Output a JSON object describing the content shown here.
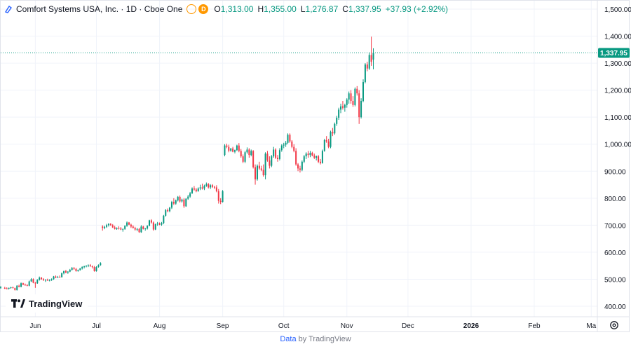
{
  "legend": {
    "symbol": "Comfort Systems USA, Inc. · 1D · Cboe One",
    "badge_left": "",
    "badge_right": "D",
    "open_label": "O",
    "open_value": "1,313.00",
    "high_label": "H",
    "high_value": "1,355.00",
    "low_label": "L",
    "low_value": "1,276.87",
    "close_label": "C",
    "close_value": "1,337.95",
    "change": "+37.93 (+2.92%)"
  },
  "branding": {
    "logo_text": "TradingView"
  },
  "footer": {
    "data_label": "Data",
    "by_text": " by TradingView"
  },
  "colors": {
    "up": "#089981",
    "down": "#f23645",
    "last_price_bg": "#089981",
    "grid": "#f0f3fa"
  },
  "chart_data": {
    "type": "candlestick",
    "y_axis_labels": [
      "1,500.00",
      "1,400.00",
      "1,300.00",
      "1,200.00",
      "1,100.00",
      "1,000.00",
      "900.00",
      "800.00",
      "700.00",
      "600.00",
      "500.00",
      "400.00"
    ],
    "ylim": [
      374,
      1500
    ],
    "x_axis_labels": [
      {
        "label": "Jun",
        "day": 7
      },
      {
        "label": "Jul",
        "day": 37
      },
      {
        "label": "Aug",
        "day": 68
      },
      {
        "label": "Sep",
        "day": 99
      },
      {
        "label": "Oct",
        "day": 129
      },
      {
        "label": "Nov",
        "day": 160
      },
      {
        "label": "Dec",
        "day": 190
      },
      {
        "label": "2026",
        "day": 221
      },
      {
        "label": "Feb",
        "day": 252
      },
      {
        "label": "Ma",
        "day": 280
      }
    ],
    "x_range": [
      -10,
      283
    ],
    "last_price": {
      "value": 1337.95,
      "label": "1,337.95"
    },
    "candles": [
      [
        -10,
        470,
        475,
        465,
        470
      ],
      [
        -8,
        468,
        472,
        464,
        466
      ],
      [
        -7,
        466,
        470,
        463,
        465
      ],
      [
        -6,
        465,
        469,
        462,
        468
      ],
      [
        -5,
        468,
        472,
        465,
        470
      ],
      [
        -4,
        470,
        473,
        466,
        467
      ],
      [
        -3,
        467,
        469,
        458,
        460
      ],
      [
        -2,
        460,
        478,
        458,
        476
      ],
      [
        -1,
        476,
        480,
        470,
        472
      ],
      [
        0,
        472,
        488,
        470,
        485
      ],
      [
        1,
        485,
        487,
        478,
        480
      ],
      [
        2,
        480,
        484,
        476,
        478
      ],
      [
        3,
        478,
        482,
        474,
        476
      ],
      [
        4,
        476,
        495,
        474,
        492
      ],
      [
        5,
        492,
        504,
        490,
        500
      ],
      [
        6,
        500,
        503,
        485,
        487
      ],
      [
        7,
        487,
        490,
        468,
        485
      ],
      [
        8,
        485,
        500,
        483,
        498
      ],
      [
        9,
        498,
        510,
        495,
        506
      ],
      [
        10,
        506,
        508,
        498,
        500
      ],
      [
        11,
        500,
        504,
        494,
        496
      ],
      [
        12,
        496,
        500,
        490,
        498
      ],
      [
        13,
        498,
        502,
        494,
        495
      ],
      [
        14,
        495,
        500,
        492,
        497
      ],
      [
        15,
        497,
        503,
        494,
        500
      ],
      [
        16,
        500,
        512,
        498,
        510
      ],
      [
        17,
        510,
        514,
        504,
        506
      ],
      [
        18,
        506,
        512,
        505,
        509
      ],
      [
        19,
        509,
        514,
        506,
        508
      ],
      [
        20,
        508,
        525,
        506,
        522
      ],
      [
        21,
        522,
        532,
        518,
        530
      ],
      [
        22,
        530,
        535,
        522,
        525
      ],
      [
        23,
        525,
        530,
        520,
        528
      ],
      [
        24,
        528,
        538,
        526,
        535
      ],
      [
        25,
        535,
        545,
        532,
        542
      ],
      [
        26,
        542,
        545,
        535,
        538
      ],
      [
        27,
        538,
        542,
        528,
        530
      ],
      [
        28,
        530,
        536,
        528,
        534
      ],
      [
        29,
        534,
        542,
        532,
        540
      ],
      [
        30,
        540,
        548,
        536,
        545
      ],
      [
        31,
        545,
        550,
        540,
        548
      ],
      [
        32,
        548,
        552,
        544,
        550
      ],
      [
        33,
        550,
        555,
        545,
        552
      ],
      [
        34,
        552,
        556,
        546,
        548
      ],
      [
        35,
        548,
        551,
        540,
        545
      ],
      [
        36,
        545,
        549,
        528,
        530
      ],
      [
        37,
        530,
        548,
        528,
        545
      ],
      [
        38,
        545,
        555,
        543,
        552
      ],
      [
        39,
        552,
        563,
        550,
        560
      ],
      [
        40,
        695,
        700,
        680,
        690
      ],
      [
        41,
        690,
        698,
        685,
        694
      ],
      [
        42,
        694,
        705,
        690,
        700
      ],
      [
        43,
        700,
        708,
        695,
        704
      ],
      [
        44,
        704,
        708,
        698,
        700
      ],
      [
        45,
        700,
        704,
        690,
        692
      ],
      [
        46,
        692,
        698,
        684,
        686
      ],
      [
        47,
        686,
        692,
        683,
        690
      ],
      [
        48,
        690,
        696,
        684,
        688
      ],
      [
        49,
        688,
        693,
        682,
        684
      ],
      [
        50,
        684,
        688,
        676,
        686
      ],
      [
        51,
        686,
        700,
        683,
        698
      ],
      [
        52,
        698,
        714,
        694,
        710
      ],
      [
        53,
        710,
        712,
        700,
        702
      ],
      [
        54,
        702,
        706,
        690,
        695
      ],
      [
        55,
        695,
        700,
        688,
        690
      ],
      [
        56,
        690,
        694,
        680,
        684
      ],
      [
        57,
        684,
        690,
        678,
        686
      ],
      [
        58,
        686,
        690,
        672,
        674
      ],
      [
        59,
        674,
        700,
        672,
        695
      ],
      [
        60,
        695,
        698,
        684,
        686
      ],
      [
        61,
        686,
        690,
        680,
        688
      ],
      [
        62,
        688,
        700,
        684,
        698
      ],
      [
        63,
        698,
        720,
        696,
        718
      ],
      [
        64,
        718,
        722,
        706,
        710
      ],
      [
        65,
        710,
        714,
        680,
        684
      ],
      [
        66,
        684,
        706,
        682,
        704
      ],
      [
        67,
        704,
        712,
        698,
        706
      ],
      [
        68,
        706,
        710,
        700,
        702
      ],
      [
        69,
        702,
        712,
        698,
        708
      ],
      [
        70,
        708,
        738,
        704,
        735
      ],
      [
        71,
        735,
        760,
        732,
        756
      ],
      [
        72,
        756,
        762,
        748,
        752
      ],
      [
        73,
        752,
        768,
        748,
        765
      ],
      [
        74,
        765,
        790,
        760,
        786
      ],
      [
        75,
        786,
        800,
        775,
        780
      ],
      [
        76,
        780,
        795,
        776,
        792
      ],
      [
        77,
        792,
        808,
        788,
        805
      ],
      [
        78,
        805,
        810,
        784,
        788
      ],
      [
        79,
        788,
        798,
        784,
        795
      ],
      [
        80,
        795,
        800,
        764,
        770
      ],
      [
        81,
        770,
        800,
        768,
        798
      ],
      [
        82,
        798,
        812,
        794,
        806
      ],
      [
        83,
        806,
        823,
        802,
        818
      ],
      [
        84,
        818,
        840,
        816,
        836
      ],
      [
        85,
        836,
        845,
        828,
        832
      ],
      [
        86,
        832,
        838,
        822,
        826
      ],
      [
        87,
        826,
        840,
        824,
        836
      ],
      [
        88,
        836,
        850,
        830,
        840
      ],
      [
        89,
        840,
        854,
        832,
        836
      ],
      [
        90,
        836,
        850,
        830,
        846
      ],
      [
        91,
        846,
        858,
        842,
        852
      ],
      [
        92,
        852,
        856,
        836,
        840
      ],
      [
        93,
        840,
        852,
        834,
        848
      ],
      [
        94,
        848,
        852,
        838,
        842
      ],
      [
        95,
        842,
        846,
        834,
        840
      ],
      [
        96,
        840,
        848,
        822,
        826
      ],
      [
        97,
        826,
        834,
        780,
        790
      ],
      [
        98,
        790,
        800,
        778,
        786
      ],
      [
        99,
        786,
        830,
        784,
        826
      ],
      [
        100,
        960,
        1000,
        955,
        995
      ],
      [
        101,
        995,
        1002,
        985,
        990
      ],
      [
        102,
        990,
        998,
        970,
        976
      ],
      [
        103,
        976,
        986,
        972,
        984
      ],
      [
        104,
        984,
        990,
        970,
        972
      ],
      [
        105,
        972,
        980,
        966,
        978
      ],
      [
        106,
        978,
        998,
        975,
        995
      ],
      [
        107,
        995,
        1004,
        970,
        975
      ],
      [
        108,
        975,
        982,
        950,
        955
      ],
      [
        109,
        955,
        962,
        930,
        935
      ],
      [
        110,
        935,
        975,
        930,
        970
      ],
      [
        111,
        970,
        988,
        965,
        980
      ],
      [
        112,
        980,
        985,
        950,
        960
      ],
      [
        113,
        960,
        980,
        955,
        975
      ],
      [
        114,
        975,
        978,
        910,
        915
      ],
      [
        115,
        915,
        925,
        850,
        870
      ],
      [
        116,
        870,
        925,
        865,
        920
      ],
      [
        117,
        920,
        935,
        905,
        910
      ],
      [
        118,
        910,
        920,
        900,
        905
      ],
      [
        119,
        905,
        925,
        880,
        885
      ],
      [
        120,
        885,
        970,
        870,
        965
      ],
      [
        121,
        965,
        975,
        935,
        940
      ],
      [
        122,
        940,
        955,
        910,
        920
      ],
      [
        123,
        920,
        960,
        915,
        955
      ],
      [
        124,
        955,
        990,
        950,
        980
      ],
      [
        125,
        980,
        985,
        945,
        950
      ],
      [
        126,
        950,
        960,
        935,
        945
      ],
      [
        127,
        945,
        985,
        940,
        978
      ],
      [
        128,
        978,
        1000,
        972,
        995
      ],
      [
        129,
        995,
        1005,
        985,
        998
      ],
      [
        130,
        998,
        1012,
        990,
        1005
      ],
      [
        131,
        1005,
        1040,
        1000,
        1035
      ],
      [
        132,
        1035,
        1040,
        1005,
        1010
      ],
      [
        133,
        1010,
        1015,
        985,
        990
      ],
      [
        134,
        990,
        1000,
        970,
        975
      ],
      [
        135,
        975,
        985,
        920,
        925
      ],
      [
        136,
        925,
        930,
        900,
        910
      ],
      [
        137,
        910,
        920,
        895,
        905
      ],
      [
        138,
        905,
        940,
        900,
        935
      ],
      [
        139,
        935,
        960,
        930,
        955
      ],
      [
        140,
        955,
        970,
        945,
        965
      ],
      [
        141,
        965,
        975,
        950,
        960
      ],
      [
        142,
        960,
        975,
        952,
        968
      ],
      [
        143,
        968,
        972,
        955,
        958
      ],
      [
        144,
        958,
        965,
        945,
        950
      ],
      [
        145,
        950,
        958,
        940,
        955
      ],
      [
        146,
        955,
        960,
        930,
        935
      ],
      [
        147,
        935,
        945,
        925,
        930
      ],
      [
        148,
        930,
        980,
        928,
        975
      ],
      [
        149,
        975,
        1020,
        972,
        1015
      ],
      [
        150,
        1015,
        1030,
        1005,
        1010
      ],
      [
        151,
        1010,
        1020,
        985,
        990
      ],
      [
        152,
        990,
        1050,
        985,
        1045
      ],
      [
        153,
        1045,
        1060,
        1030,
        1040
      ],
      [
        154,
        1040,
        1080,
        1035,
        1075
      ],
      [
        155,
        1075,
        1105,
        1068,
        1098
      ],
      [
        156,
        1098,
        1135,
        1090,
        1128
      ],
      [
        157,
        1128,
        1150,
        1115,
        1140
      ],
      [
        158,
        1140,
        1160,
        1128,
        1135
      ],
      [
        159,
        1135,
        1150,
        1120,
        1145
      ],
      [
        160,
        1145,
        1170,
        1135,
        1165
      ],
      [
        161,
        1165,
        1195,
        1150,
        1188
      ],
      [
        162,
        1188,
        1200,
        1150,
        1160
      ],
      [
        163,
        1160,
        1178,
        1138,
        1145
      ],
      [
        164,
        1145,
        1210,
        1140,
        1205
      ],
      [
        165,
        1205,
        1215,
        1180,
        1188
      ],
      [
        166,
        1188,
        1200,
        1075,
        1100
      ],
      [
        167,
        1100,
        1170,
        1095,
        1160
      ],
      [
        168,
        1160,
        1240,
        1155,
        1230
      ],
      [
        169,
        1230,
        1300,
        1225,
        1295
      ],
      [
        170,
        1295,
        1305,
        1270,
        1280
      ],
      [
        171,
        1280,
        1340,
        1275,
        1330
      ],
      [
        172,
        1330,
        1398,
        1290,
        1305
      ],
      [
        173,
        1313,
        1355,
        1277,
        1338
      ]
    ]
  }
}
